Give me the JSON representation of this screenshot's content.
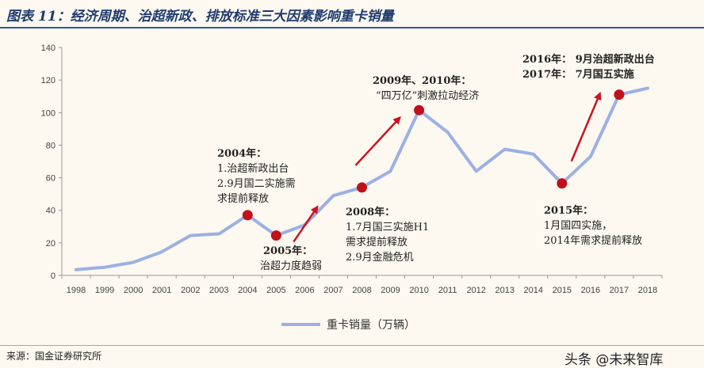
{
  "header": {
    "title": "图表 11：经济周期、治超新政、排放标准三大因素影响重卡销量"
  },
  "footer": {
    "source": "来源：国金证券研究所",
    "watermark": "头条 @未来智库"
  },
  "chart_data": {
    "type": "line",
    "x": [
      "1998",
      "1999",
      "2000",
      "2001",
      "2002",
      "2003",
      "2004",
      "2005",
      "2006",
      "2007",
      "2008",
      "2009",
      "2010",
      "2011",
      "2012",
      "2013",
      "2014",
      "2015",
      "2016",
      "2017",
      "2018"
    ],
    "series": [
      {
        "name": "重卡销量（万辆）",
        "values": [
          3.5,
          5,
          8,
          14.5,
          24.5,
          25.5,
          37,
          24.5,
          31,
          49,
          54,
          64,
          101.5,
          88,
          64,
          77.5,
          74.5,
          56.5,
          73,
          111,
          115
        ]
      }
    ],
    "yticks": [
      0,
      20,
      40,
      60,
      80,
      100,
      120,
      140
    ],
    "ylim": [
      0,
      140
    ],
    "legend_position": "bottom",
    "highlight_points": [
      "2004",
      "2005",
      "2008",
      "2010",
      "2015",
      "2017"
    ],
    "colors": {
      "line": "#9bb0e4",
      "marker": "#c0101a",
      "arrow": "#c8141e"
    },
    "annotations": [
      {
        "id": "a2004",
        "lines": [
          "2004年：",
          "1.治超新政出台",
          "2.9月国二实施需",
          "求提前释放"
        ]
      },
      {
        "id": "a2005",
        "lines": [
          "2005年：",
          "治超力度趋弱"
        ]
      },
      {
        "id": "a2008",
        "lines": [
          "2008年：",
          "1.7月国三实施H1",
          "需求提前释放",
          "2.9月金融危机"
        ]
      },
      {
        "id": "a2010",
        "lines": [
          "2009年、2010年：",
          "“四万亿”刺激拉动经济"
        ]
      },
      {
        "id": "a2016",
        "lines": [
          "2016年：  9月治超新政出台",
          "2017年：  7月国五实施"
        ]
      },
      {
        "id": "a2015",
        "lines": [
          "2015年：",
          "1月国四实施，",
          "2014年需求提前释放"
        ]
      }
    ]
  }
}
